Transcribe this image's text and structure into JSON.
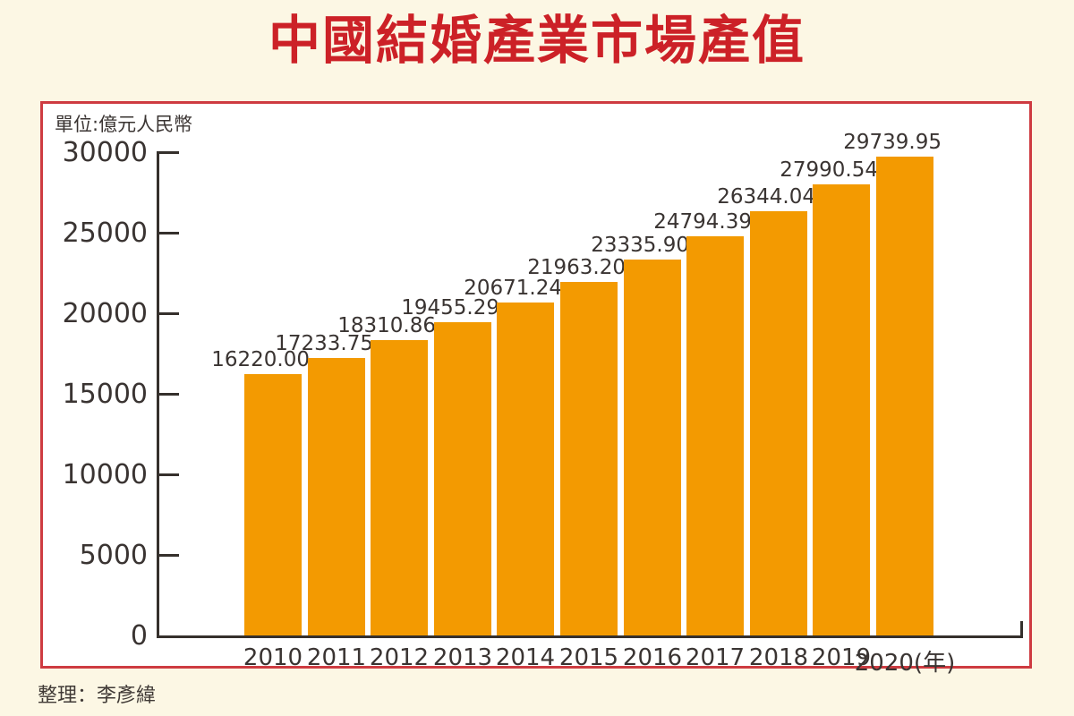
{
  "title": "中國結婚產業市場產值",
  "source": "整理：李彥緯",
  "colors": {
    "background": "#FCF7E4",
    "panel": "#FFFFFF",
    "panel_border": "#CE3B41",
    "title": "#CC2127",
    "bar": "#F39A01",
    "axis": "#35302C",
    "text": "#3A3432"
  },
  "chart_data": {
    "type": "bar",
    "title": "中國結婚產業市場產值",
    "unit_label": "單位:億元人民幣",
    "xlabel": "年",
    "ylabel": "億元人民幣",
    "categories": [
      "2010",
      "2011",
      "2012",
      "2013",
      "2014",
      "2015",
      "2016",
      "2017",
      "2018",
      "2019",
      "2020(年)"
    ],
    "values": [
      16220.0,
      17233.75,
      18310.86,
      19455.29,
      20671.24,
      21963.2,
      23335.9,
      24794.39,
      26344.04,
      27990.54,
      29739.95
    ],
    "value_labels": [
      "16220.00",
      "17233.75",
      "18310.86",
      "19455.29",
      "20671.24",
      "21963.20",
      "23335.90",
      "24794.39",
      "26344.04",
      "27990.54",
      "29739.95"
    ],
    "ylim": [
      0,
      30000
    ],
    "yticks": [
      0,
      5000,
      10000,
      15000,
      20000,
      25000,
      30000
    ],
    "grid": "off",
    "legend": "none",
    "bar_color": "#F39A01"
  }
}
